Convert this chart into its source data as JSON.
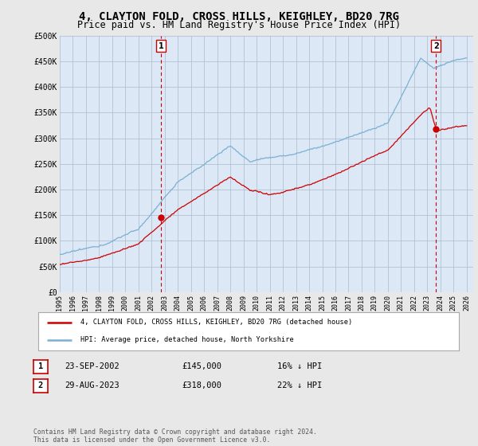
{
  "title": "4, CLAYTON FOLD, CROSS HILLS, KEIGHLEY, BD20 7RG",
  "subtitle": "Price paid vs. HM Land Registry's House Price Index (HPI)",
  "title_fontsize": 10,
  "subtitle_fontsize": 8.5,
  "ylim": [
    0,
    500000
  ],
  "yticks": [
    0,
    50000,
    100000,
    150000,
    200000,
    250000,
    300000,
    350000,
    400000,
    450000,
    500000
  ],
  "ytick_labels": [
    "£0",
    "£50K",
    "£100K",
    "£150K",
    "£200K",
    "£250K",
    "£300K",
    "£350K",
    "£400K",
    "£450K",
    "£500K"
  ],
  "background_color": "#e8e8e8",
  "plot_background_color": "#dce8f5",
  "grid_color": "#aabbcc",
  "sale1_x": 2002.72,
  "sale1_value": 145000,
  "sale2_x": 2023.66,
  "sale2_value": 318000,
  "red_line_color": "#cc0000",
  "blue_line_color": "#7ab0d4",
  "annotation_box_color": "#cc0000",
  "legend_label_red": "4, CLAYTON FOLD, CROSS HILLS, KEIGHLEY, BD20 7RG (detached house)",
  "legend_label_blue": "HPI: Average price, detached house, North Yorkshire",
  "table_row1": [
    "1",
    "23-SEP-2002",
    "£145,000",
    "16% ↓ HPI"
  ],
  "table_row2": [
    "2",
    "29-AUG-2023",
    "£318,000",
    "22% ↓ HPI"
  ],
  "footer": "Contains HM Land Registry data © Crown copyright and database right 2024.\nThis data is licensed under the Open Government Licence v3.0."
}
